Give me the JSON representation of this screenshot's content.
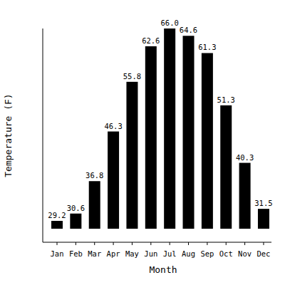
{
  "chart_data": {
    "type": "bar",
    "x_label": "Month",
    "y_label": "Temperature (F)",
    "categories": [
      "Jan",
      "Feb",
      "Mar",
      "Apr",
      "May",
      "Jun",
      "Jul",
      "Aug",
      "Sep",
      "Oct",
      "Nov",
      "Dec"
    ],
    "values": [
      29.2,
      30.6,
      36.8,
      46.3,
      55.8,
      62.6,
      66.0,
      64.6,
      61.3,
      51.3,
      40.3,
      31.5
    ],
    "value_labels": [
      "29.2",
      "30.6",
      "36.8",
      "46.3",
      "55.8",
      "62.6",
      "66.0",
      "64.6",
      "61.3",
      "51.3",
      "40.3",
      "31.5"
    ],
    "color": "#000000",
    "ylim": [
      27.7,
      66
    ],
    "data_labels": true,
    "tick_labels": "x"
  }
}
